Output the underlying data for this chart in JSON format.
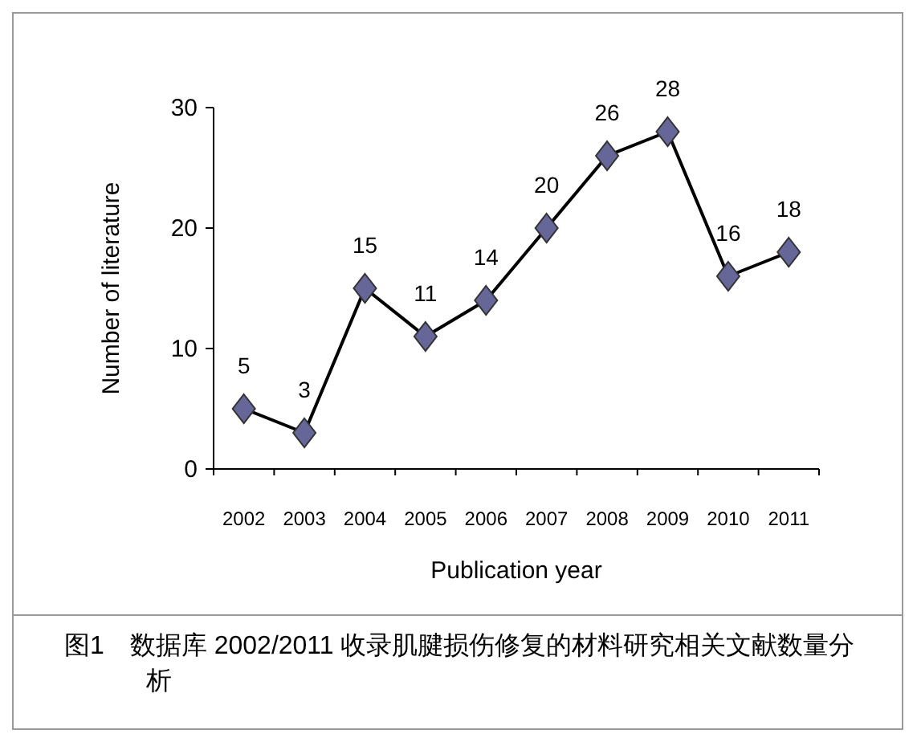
{
  "chart_data": {
    "type": "line",
    "xlabel": "Publication year",
    "ylabel": "Number of literature",
    "categories": [
      "2002",
      "2003",
      "2004",
      "2005",
      "2006",
      "2007",
      "2008",
      "2009",
      "2010",
      "2011"
    ],
    "series": [
      {
        "color": "#666699",
        "values": [
          5,
          3,
          15,
          11,
          14,
          20,
          26,
          28,
          16,
          18
        ]
      }
    ],
    "ylim": [
      0,
      30
    ],
    "yticks": [
      0,
      10,
      20,
      30
    ],
    "marker": "diamond",
    "line_style": "solid",
    "data_labels": true,
    "grid": false,
    "annotations": [
      "图1　数据库 2002/2011 收录肌腱损伤修复的材料研究相关文献数量分析"
    ]
  }
}
